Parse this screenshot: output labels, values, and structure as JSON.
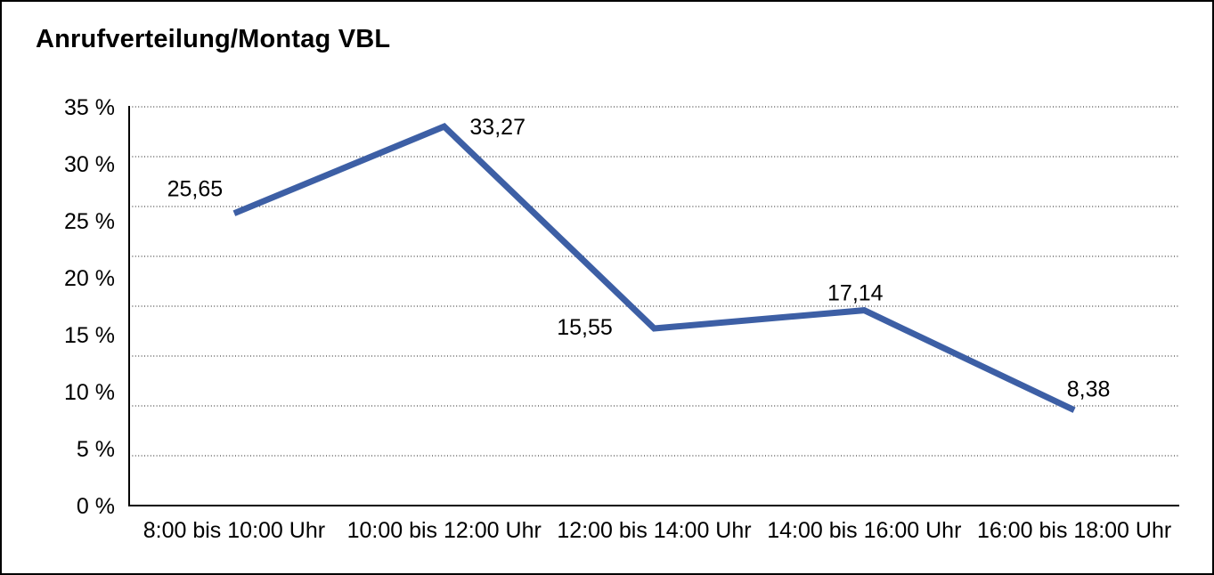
{
  "chart_data": {
    "type": "line",
    "title": "Anrufverteilung/Montag VBL",
    "categories": [
      "8:00 bis 10:00 Uhr",
      "10:00 bis 12:00 Uhr",
      "12:00 bis 14:00 Uhr",
      "14:00 bis 16:00 Uhr",
      "16:00 bis 18:00 Uhr"
    ],
    "values": [
      25.65,
      33.27,
      15.55,
      17.14,
      8.38
    ],
    "value_labels": [
      "25,65",
      "33,27",
      "15,55",
      "17,14",
      "8,38"
    ],
    "xlabel": "",
    "ylabel": "",
    "ylim": [
      0,
      35
    ],
    "yticks": [
      0,
      5,
      10,
      15,
      20,
      25,
      30,
      35
    ],
    "ytick_labels": [
      "0 %",
      "5 %",
      "10 %",
      "15 %",
      "20 %",
      "25 %",
      "30 %",
      "35 %"
    ],
    "grid": "horizontal-dotted",
    "legend": "none"
  },
  "colors": {
    "line": "#3D5FA5",
    "grid": "#444444",
    "axis": "#000000",
    "text": "#000000",
    "background": "#FFFFFF",
    "border": "#000000"
  }
}
